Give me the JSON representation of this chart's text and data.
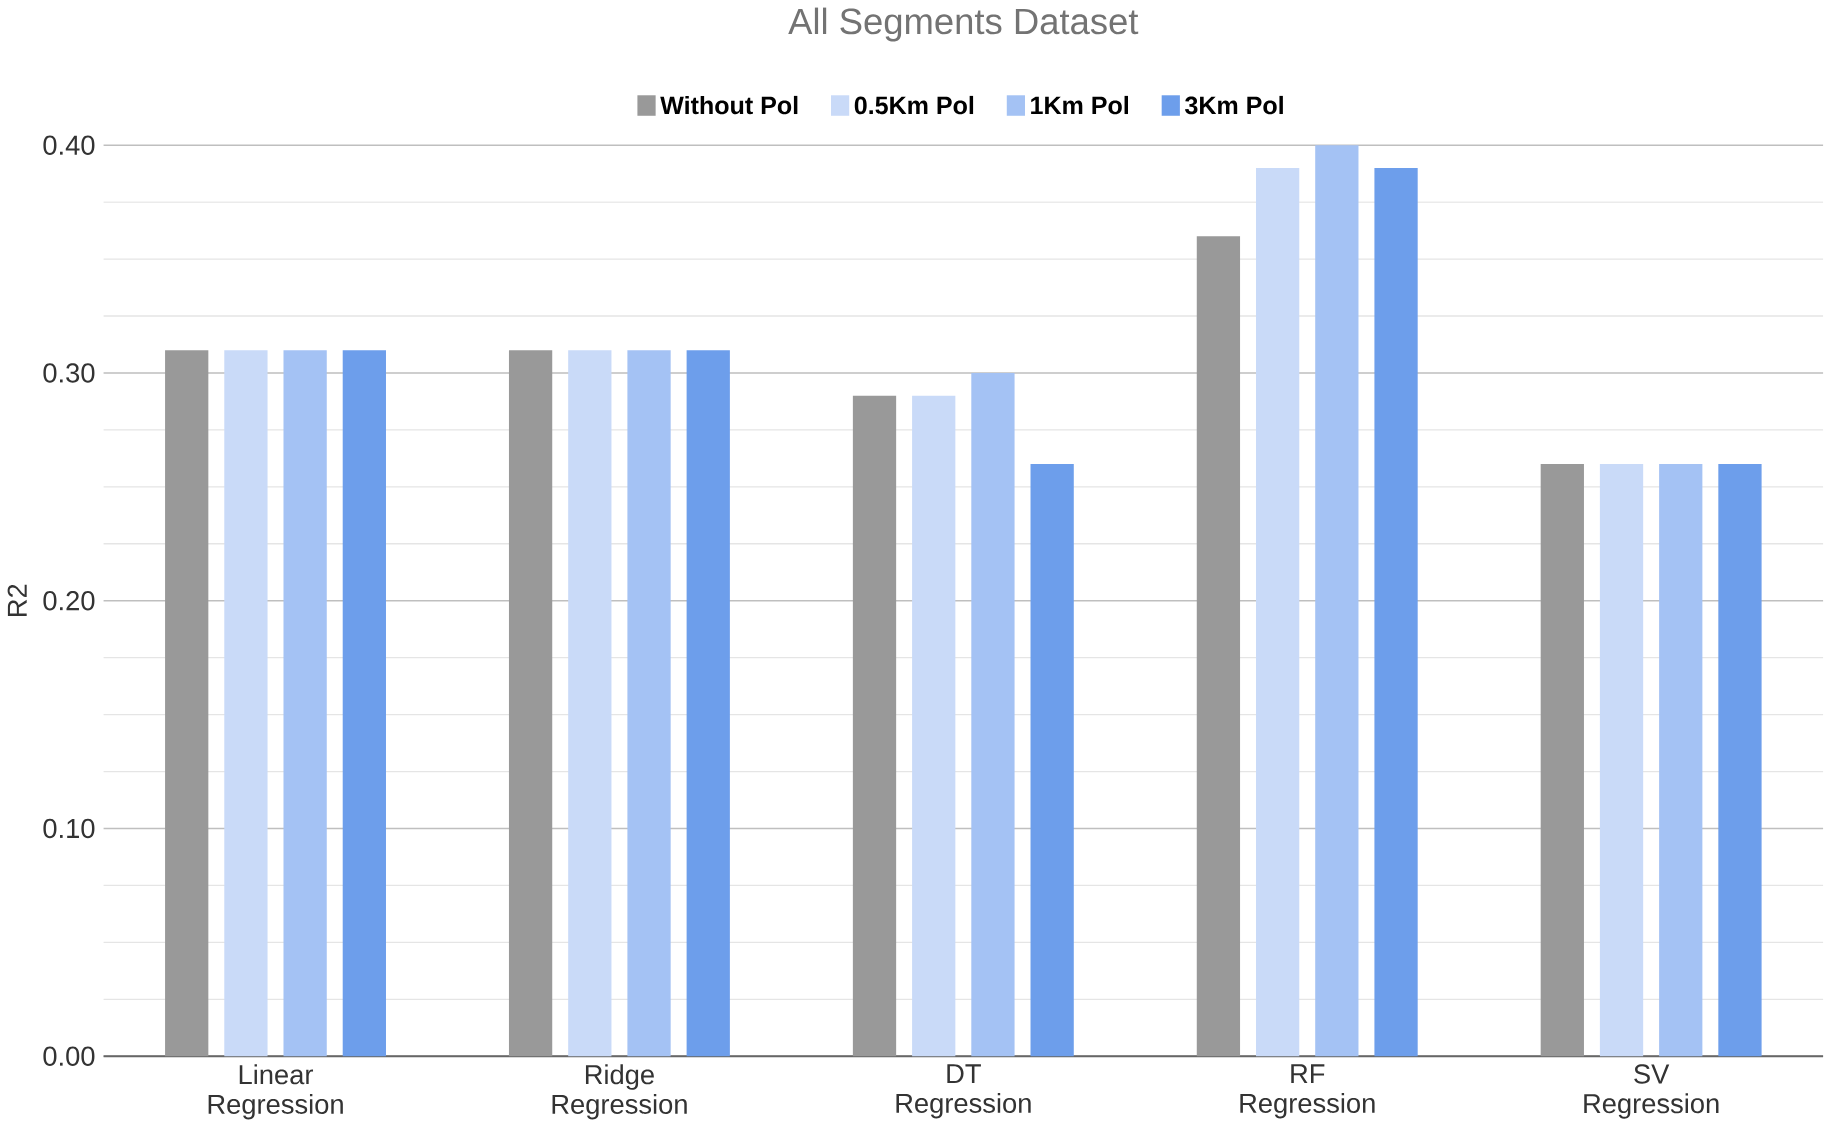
{
  "chart_data": {
    "type": "bar",
    "title": "All Segments Dataset",
    "ylabel": "R2",
    "categories": [
      "Linear Regression",
      "Ridge Regression",
      "DT Regression",
      "RF Regression",
      "SV Regression"
    ],
    "series": [
      {
        "name": "Without Pol",
        "color": "#999999",
        "values": [
          0.31,
          0.31,
          0.29,
          0.36,
          0.26
        ]
      },
      {
        "name": "0.5Km Pol",
        "color": "#c9daf8",
        "values": [
          0.31,
          0.31,
          0.29,
          0.39,
          0.26
        ]
      },
      {
        "name": "1Km Pol",
        "color": "#a4c2f4",
        "values": [
          0.31,
          0.31,
          0.3,
          0.4,
          0.26
        ]
      },
      {
        "name": "3Km Pol",
        "color": "#6d9eeb",
        "values": [
          0.31,
          0.31,
          0.26,
          0.39,
          0.26
        ]
      }
    ],
    "ylim": [
      0,
      0.4
    ],
    "yticks": [
      {
        "value": 0,
        "label": "0.00"
      },
      {
        "value": 0.1,
        "label": "0.10"
      },
      {
        "value": 0.2,
        "label": "0.20"
      },
      {
        "value": 0.3,
        "label": "0.30"
      },
      {
        "value": 0.4,
        "label": "0.40"
      }
    ],
    "grid": "y",
    "legend": "top"
  }
}
